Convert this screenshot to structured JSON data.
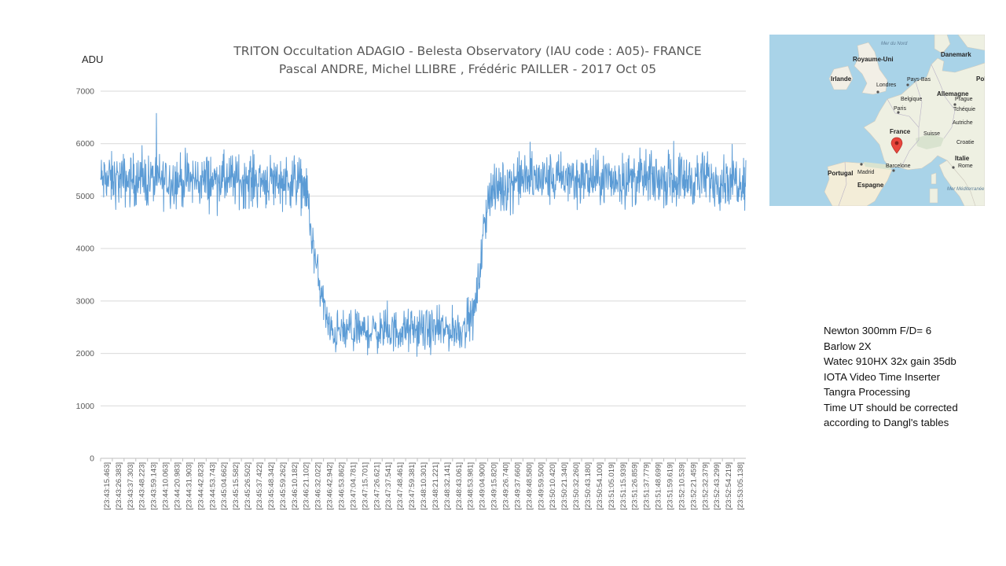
{
  "chart_data": {
    "type": "line",
    "title": "TRITON Occultation ADAGIO - Belesta Observatory (IAU code : A05)- FRANCE",
    "subtitle": "Pascal ANDRE, Michel LLIBRE , Frédéric PAILLER - 2017 Oct 05",
    "ylabel": "ADU",
    "xlabel": "",
    "ylim": [
      0,
      7000
    ],
    "yticks": [
      0,
      1000,
      2000,
      3000,
      4000,
      5000,
      6000,
      7000
    ],
    "grid": true,
    "legend": "none",
    "series_color": "#5b9bd5",
    "categories": [
      "[23:43:15.463]",
      "[23:43:26.383]",
      "[23:43:37.303]",
      "[23:43:48.223]",
      "[23:43:59.143]",
      "[23:44:10.063]",
      "[23:44:20.983]",
      "[23:44:31.903]",
      "[23:44:42.823]",
      "[23:44:53.743]",
      "[23:45:04.662]",
      "[23:45:15.582]",
      "[23:45:26.502]",
      "[23:45:37.422]",
      "[23:45:48.342]",
      "[23:45:59.262]",
      "[23:46:10.182]",
      "[23:46:21.102]",
      "[23:46:32.022]",
      "[23:46:42.942]",
      "[23:46:53.862]",
      "[23:47:04.781]",
      "[23:47:15.701]",
      "[23:47:26.621]",
      "[23:47:37.541]",
      "[23:47:48.461]",
      "[23:47:59.381]",
      "[23:48:10.301]",
      "[23:48:21.221]",
      "[23:48:32.141]",
      "[23:48:43.061]",
      "[23:48:53.981]",
      "[23:49:04.900]",
      "[23:49:15.820]",
      "[23:49:26.740]",
      "[23:49:37.660]",
      "[23:49:48.580]",
      "[23:49:59.500]",
      "[23:50:10.420]",
      "[23:50:21.340]",
      "[23:50:32.260]",
      "[23:50:43.180]",
      "[23:50:54.100]",
      "[23:51:05.019]",
      "[23:51:15.939]",
      "[23:51:26.859]",
      "[23:51:37.779]",
      "[23:51:48.699]",
      "[23:51:59.619]",
      "[23:52:10.539]",
      "[23:52:21.459]",
      "[23:52:32.379]",
      "[23:52:43.299]",
      "[23:52:54.219]",
      "[23:53:05.138]"
    ],
    "profile": {
      "x": [
        0,
        16.0,
        17.5,
        18.0,
        18.5,
        19.5,
        30.7,
        31.8,
        32.4,
        33.0,
        35.4,
        57.0
      ],
      "y": [
        5300,
        5300,
        5200,
        4200,
        3500,
        2400,
        2450,
        2700,
        3700,
        5000,
        5320,
        5320
      ]
    }
  },
  "map": {
    "labels": {
      "north_sea": "Mer du Nord",
      "uk": "Royaume-Uni",
      "denmark": "Danemark",
      "ireland": "Irlande",
      "london": "Londres",
      "netherlands": "Pays-Bas",
      "poland": "Pol",
      "germany": "Allemagne",
      "belgium": "Belgique",
      "prague": "Prague",
      "paris": "Paris",
      "czech": "Tchéquie",
      "france": "France",
      "austria": "Autriche",
      "switzerland": "Suisse",
      "croatia": "Croatie",
      "italy": "Italie",
      "portugal": "Portugal",
      "madrid": "Madrid",
      "barcelona": "Barcelone",
      "rome": "Rome",
      "spain": "Espagne",
      "med_sea": "Mer Méditerranée"
    }
  },
  "notes": [
    "Newton 300mm  F/D= 6",
    "Barlow 2X",
    "Watec 910HX  32x gain 35db",
    "IOTA Video Time Inserter",
    "Tangra  Processing",
    "Time UT  should be corrected",
    "according to Dangl's tables"
  ]
}
